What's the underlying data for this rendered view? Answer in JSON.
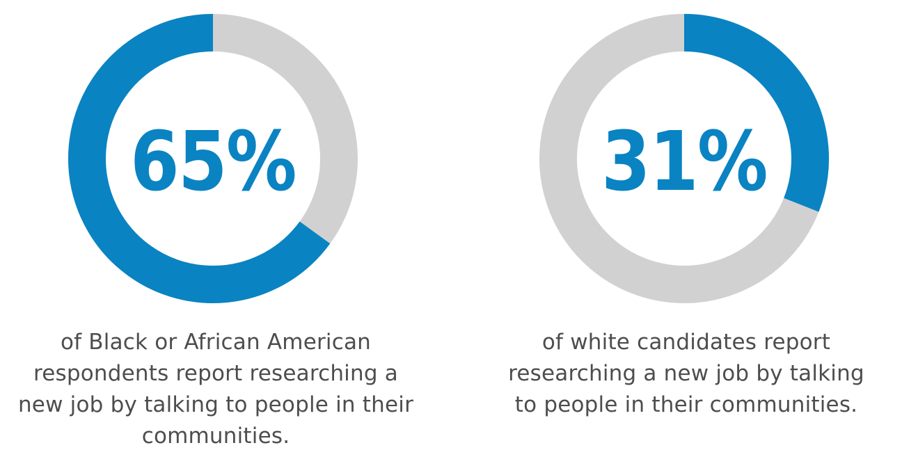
{
  "colors": {
    "accent": "#0a83c2",
    "track": "#d1d1d1",
    "text": "#4d4d4d"
  },
  "chart_data": [
    {
      "type": "pie",
      "value": 65,
      "remainder": 35,
      "center_label": "65%",
      "caption_lines": [
        "of Black or African American",
        "respondents report researching a",
        "new job by talking to people in their",
        "communities."
      ]
    },
    {
      "type": "pie",
      "value": 31,
      "remainder": 69,
      "center_label": "31%",
      "caption_lines": [
        "of white candidates report",
        "researching a new job by talking",
        "to people in their communities."
      ]
    }
  ]
}
